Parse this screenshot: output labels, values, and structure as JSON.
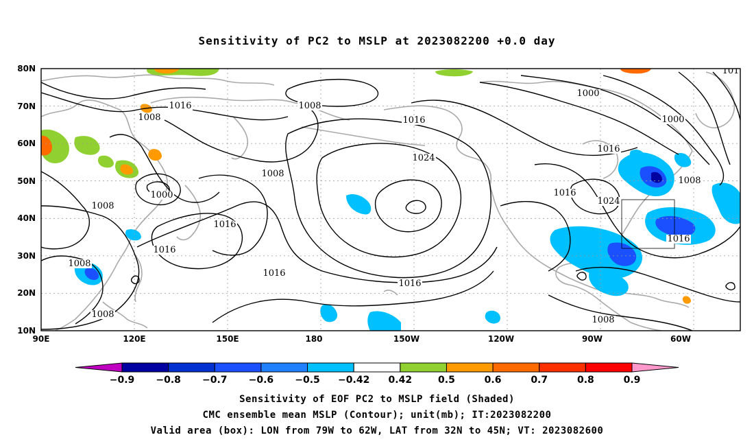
{
  "title": "Sensitivity of PC2 to MSLP at 2023082200 +0.0 day",
  "map": {
    "lat_labels": [
      "80N",
      "70N",
      "60N",
      "50N",
      "40N",
      "30N",
      "20N",
      "10N"
    ],
    "lon_labels": [
      "90E",
      "120E",
      "150E",
      "180",
      "150W",
      "120W",
      "90W",
      "60W"
    ],
    "isobar_labels": [
      "1016",
      "1008",
      "1008",
      "1000",
      "1008",
      "1008",
      "1016",
      "1008",
      "1008",
      "1016",
      "1016",
      "1024",
      "1016",
      "1016",
      "1000",
      "1000",
      "1016",
      "1008",
      "1024",
      "1016",
      "1016",
      "1008",
      "101"
    ],
    "valid_box": {
      "lon_from": "79W",
      "lon_to": "62W",
      "lat_from": "32N",
      "lat_to": "45N"
    },
    "colors": {
      "land": "#a9a9a9",
      "contour": "#000000",
      "grid": "#9a9a9a"
    }
  },
  "colorbar": {
    "labels": [
      "-0.9",
      "-0.8",
      "-0.7",
      "-0.6",
      "-0.5",
      "-0.42",
      "0.42",
      "0.5",
      "0.6",
      "0.7",
      "0.8",
      "0.9"
    ],
    "colors": [
      "#c000c0",
      "#0000a0",
      "#0030d0",
      "#1a50ff",
      "#2080ff",
      "#00c0ff",
      "#ffffff",
      "#90d030",
      "#ff9a00",
      "#ff6a00",
      "#ff3000",
      "#ff0000",
      "#ff99cc"
    ]
  },
  "captions": {
    "line1": "Sensitivity of EOF PC2 to MSLP field (Shaded)",
    "line2": "CMC ensemble mean MSLP (Contour); unit(mb); IT:2023082200",
    "line3": "Valid area (box): LON from 79W to 62W, LAT from 32N to 45N; VT: 2023082600"
  }
}
